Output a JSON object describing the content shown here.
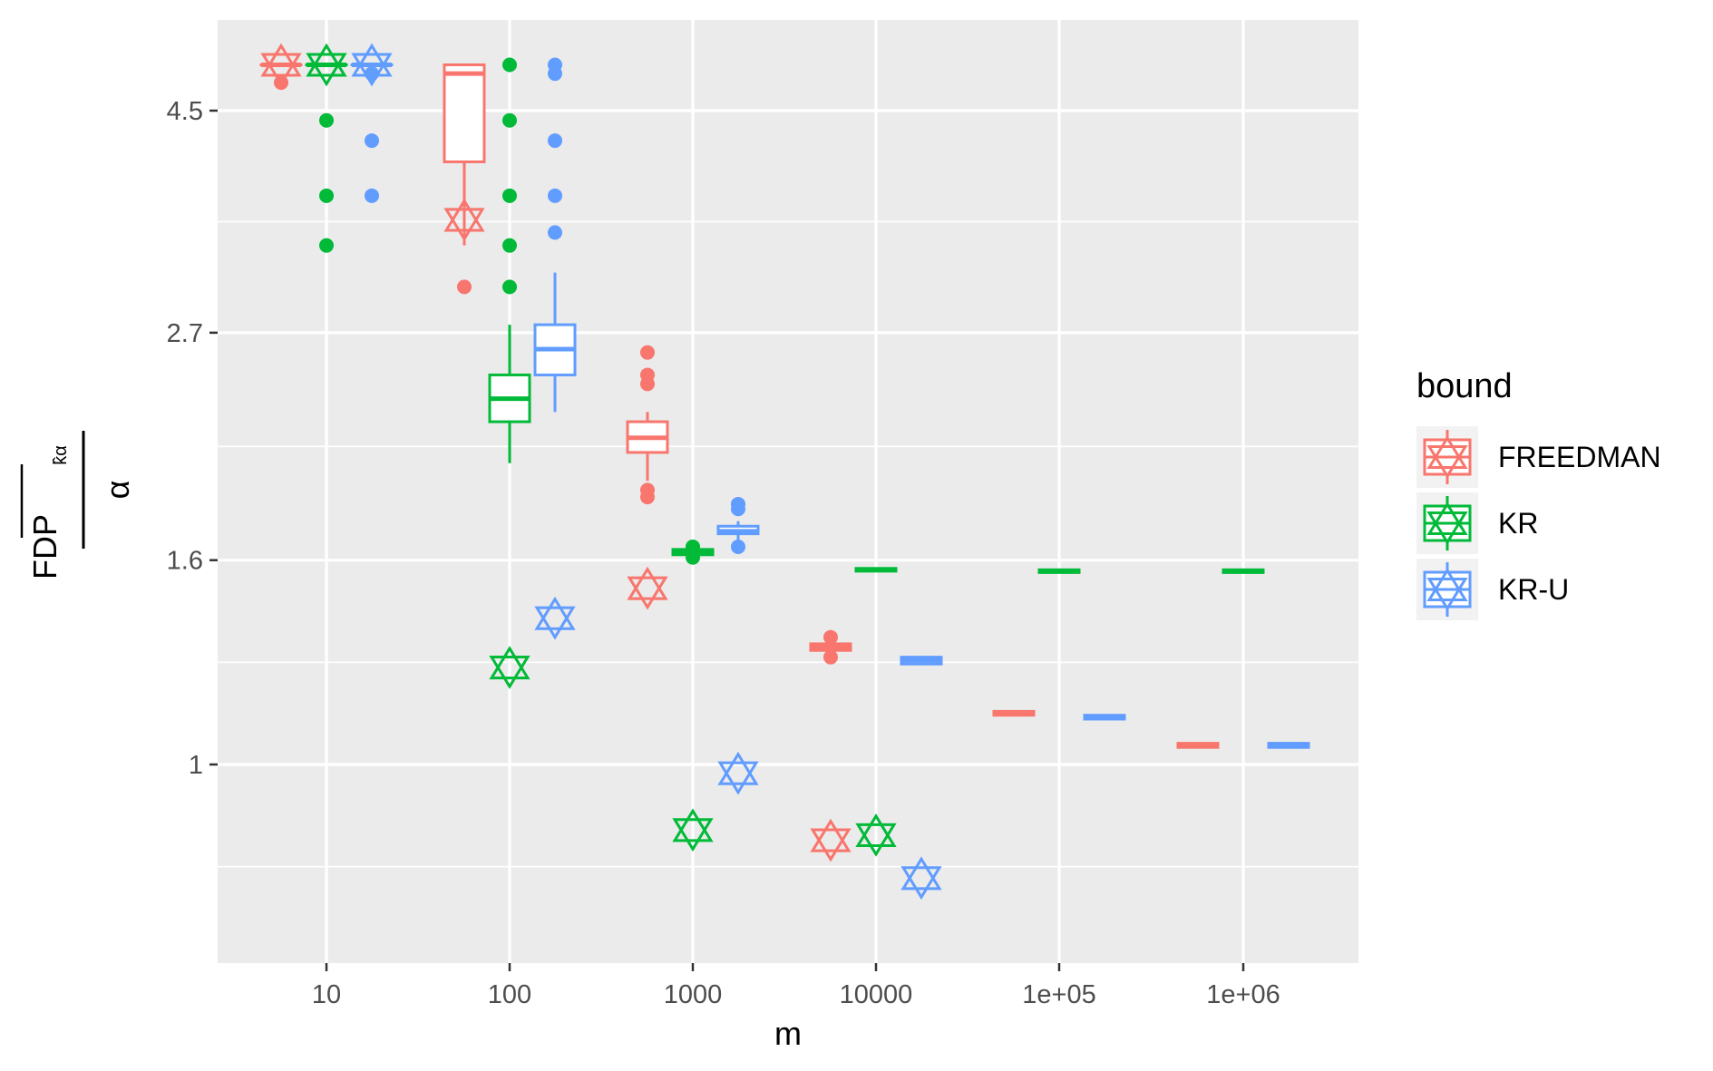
{
  "chart_data": {
    "type": "boxplot",
    "xlabel": "m",
    "ylabel_numerator": "FDP",
    "ylabel_subscript": "k̂α",
    "ylabel_denominator": "α",
    "x_scale": "log10",
    "y_scale": "log",
    "x_categories": [
      10,
      100,
      1000,
      10000,
      100000,
      1000000
    ],
    "x_tick_labels": [
      "10",
      "100",
      "1000",
      "10000",
      "1e+05",
      "1e+06"
    ],
    "y_ticks": [
      1,
      1.6,
      2.7,
      4.5
    ],
    "y_tick_labels": [
      "1",
      "1.6",
      "2.7",
      "4.5"
    ],
    "grid": true,
    "legend": {
      "title": "bound",
      "position": "right",
      "entries": [
        "FREEDMAN",
        "KR",
        "KR-U"
      ]
    },
    "colors": {
      "FREEDMAN": "#F8766D",
      "KR": "#00BA38",
      "KR-U": "#619CFF",
      "panel": "#EBEBEB",
      "grid": "#FFFFFF"
    },
    "series": [
      {
        "name": "FREEDMAN",
        "boxes": [
          {
            "m": 10,
            "lower": 5.0,
            "q1": 5.0,
            "median": 5.0,
            "q3": 5.0,
            "upper": 5.0,
            "outliers": [
              4.8
            ],
            "star": 5.0
          },
          {
            "m": 100,
            "lower": 3.3,
            "q1": 4.0,
            "median": 4.9,
            "q3": 5.0,
            "upper": 5.0,
            "outliers": [
              3.0
            ],
            "star": 3.5
          },
          {
            "m": 1000,
            "lower": 1.92,
            "q1": 2.05,
            "median": 2.12,
            "q3": 2.2,
            "upper": 2.25,
            "outliers": [
              1.85,
              1.88,
              2.4,
              2.45,
              2.58
            ],
            "star": 1.5
          },
          {
            "m": 10000,
            "lower": 1.29,
            "q1": 1.3,
            "median": 1.31,
            "q3": 1.32,
            "upper": 1.33,
            "outliers": [
              1.28,
              1.34
            ],
            "star": 0.84
          },
          {
            "m": 100000,
            "lower": 1.12,
            "q1": 1.12,
            "median": 1.125,
            "q3": 1.13,
            "upper": 1.13,
            "outliers": [],
            "star": null
          },
          {
            "m": 1000000,
            "lower": 1.04,
            "q1": 1.04,
            "median": 1.045,
            "q3": 1.05,
            "upper": 1.05,
            "outliers": [],
            "star": null
          }
        ]
      },
      {
        "name": "KR",
        "boxes": [
          {
            "m": 10,
            "lower": 5.0,
            "q1": 5.0,
            "median": 5.0,
            "q3": 5.0,
            "upper": 5.0,
            "outliers": [
              3.3,
              3.7,
              4.4
            ],
            "star": 5.0
          },
          {
            "m": 100,
            "lower": 2.0,
            "q1": 2.2,
            "median": 2.32,
            "q3": 2.45,
            "upper": 2.75,
            "outliers": [
              3.0,
              3.3,
              3.7,
              4.4,
              5.0
            ],
            "star": 1.25
          },
          {
            "m": 1000,
            "lower": 1.62,
            "q1": 1.62,
            "median": 1.63,
            "q3": 1.64,
            "upper": 1.64,
            "outliers": [
              1.61,
              1.65
            ],
            "star": 0.86
          },
          {
            "m": 10000,
            "lower": 1.56,
            "q1": 1.56,
            "median": 1.565,
            "q3": 1.57,
            "upper": 1.57,
            "outliers": [],
            "star": 0.85
          },
          {
            "m": 100000,
            "lower": 1.555,
            "q1": 1.555,
            "median": 1.56,
            "q3": 1.565,
            "upper": 1.565,
            "outliers": [],
            "star": null
          },
          {
            "m": 1000000,
            "lower": 1.555,
            "q1": 1.555,
            "median": 1.56,
            "q3": 1.565,
            "upper": 1.565,
            "outliers": [],
            "star": null
          }
        ]
      },
      {
        "name": "KR-U",
        "boxes": [
          {
            "m": 10,
            "lower": 5.0,
            "q1": 5.0,
            "median": 5.0,
            "q3": 5.0,
            "upper": 5.0,
            "outliers": [
              3.7,
              4.2,
              4.9
            ],
            "star": 5.0
          },
          {
            "m": 100,
            "lower": 2.25,
            "q1": 2.45,
            "median": 2.6,
            "q3": 2.75,
            "upper": 3.1,
            "outliers": [
              3.4,
              3.7,
              4.2,
              4.9,
              5.0
            ],
            "star": 1.4
          },
          {
            "m": 1000,
            "lower": 1.65,
            "q1": 1.7,
            "median": 1.71,
            "q3": 1.73,
            "upper": 1.75,
            "outliers": [
              1.65,
              1.8,
              1.82
            ],
            "star": 0.98
          },
          {
            "m": 10000,
            "lower": 1.26,
            "q1": 1.26,
            "median": 1.27,
            "q3": 1.28,
            "upper": 1.28,
            "outliers": [],
            "star": 0.77
          },
          {
            "m": 100000,
            "lower": 1.11,
            "q1": 1.11,
            "median": 1.115,
            "q3": 1.12,
            "upper": 1.12,
            "outliers": [],
            "star": null
          },
          {
            "m": 1000000,
            "lower": 1.04,
            "q1": 1.04,
            "median": 1.045,
            "q3": 1.05,
            "upper": 1.05,
            "outliers": [],
            "star": null
          }
        ]
      }
    ]
  }
}
